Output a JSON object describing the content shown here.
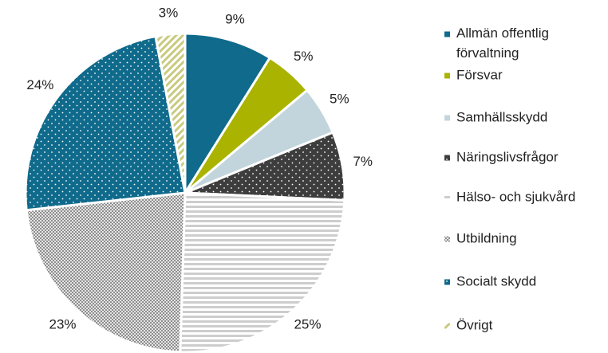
{
  "chart_data": {
    "type": "pie",
    "categories": [
      "Allmän offentlig förvaltning",
      "Försvar",
      "Samhällsskydd",
      "Näringslivsfrågor",
      "Hälso- och sjukvård",
      "Utbildning",
      "Socialt skydd",
      "Övrigt"
    ],
    "values": [
      9,
      5,
      5,
      7,
      25,
      23,
      24,
      3
    ],
    "value_labels": [
      "9%",
      "5%",
      "5%",
      "7%",
      "25%",
      "23%",
      "24%",
      "3%"
    ],
    "colors": [
      "#0f6a8b",
      "#a9b300",
      "#c3d5dc",
      "#3d3d3d",
      "#cdcdcd",
      "#8e8e8e",
      "#0f6a8b",
      "#c9ca80"
    ],
    "patterns": [
      "solid",
      "solid",
      "solid",
      "dots",
      "hstripes",
      "checker",
      "dots",
      "diag"
    ],
    "legend": "right"
  }
}
